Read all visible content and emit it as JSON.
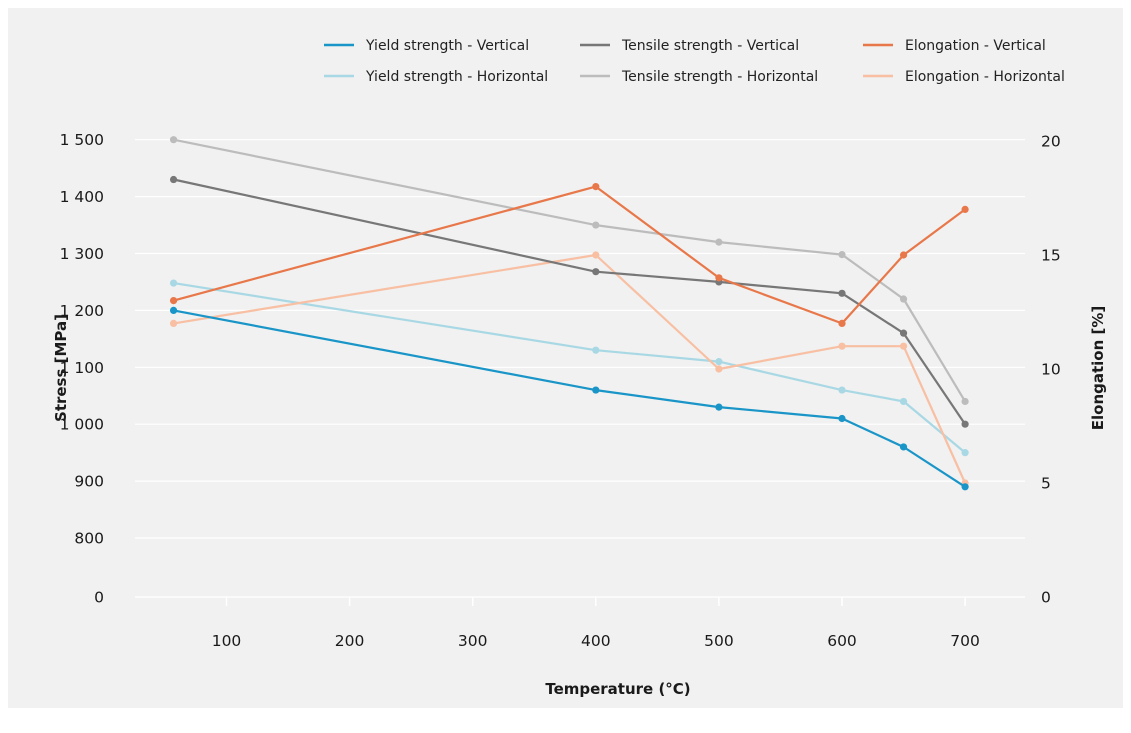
{
  "chart_data": {
    "type": "line",
    "xlabel": "Temperature (°C)",
    "ylabel": "Stress [MPa]",
    "y2label": "Elongation [%]",
    "x_ticks": [
      100,
      200,
      300,
      400,
      500,
      600,
      700
    ],
    "y_ticks": [
      "0",
      "800",
      "900",
      "1 000",
      "1 100",
      "1 200",
      "1 300",
      "1 400",
      "1 500"
    ],
    "y_tick_values": [
      0,
      800,
      900,
      1000,
      1100,
      1200,
      1300,
      1400,
      1500
    ],
    "y2_ticks": [
      "0",
      "5",
      "10",
      "15",
      "20"
    ],
    "y2_tick_values": [
      0,
      5,
      10,
      15,
      20
    ],
    "ylim": [
      0,
      1500
    ],
    "y_scale": "broken (0, then 800–1500)",
    "y2lim": [
      0,
      20
    ],
    "xlim": [
      20,
      750
    ],
    "grid": "horizontal",
    "legend_position": "top",
    "series": [
      {
        "name": "Yield strength - Vertical",
        "axis": "left",
        "color": "#1a95c8",
        "x": [
          57,
          400,
          500,
          600,
          650,
          700
        ],
        "values": [
          1200,
          1060,
          1030,
          1010,
          960,
          890
        ]
      },
      {
        "name": "Yield strength - Horizontal",
        "axis": "left",
        "color": "#a9d8e5",
        "x": [
          57,
          400,
          500,
          600,
          650,
          700
        ],
        "values": [
          1248,
          1130,
          1110,
          1060,
          1040,
          950
        ]
      },
      {
        "name": "Tensile strength - Vertical",
        "axis": "left",
        "color": "#777777",
        "x": [
          57,
          400,
          500,
          600,
          650,
          700
        ],
        "values": [
          1430,
          1268,
          1250,
          1230,
          1160,
          1000
        ]
      },
      {
        "name": "Tensile strength - Horizontal",
        "axis": "left",
        "color": "#bcbcbc",
        "x": [
          57,
          400,
          500,
          600,
          650,
          700
        ],
        "values": [
          1500,
          1350,
          1320,
          1298,
          1220,
          1040
        ]
      },
      {
        "name": "Elongation - Vertical",
        "axis": "right",
        "color": "#e8774a",
        "x": [
          57,
          400,
          500,
          600,
          650,
          700
        ],
        "values": [
          13,
          18,
          14,
          12,
          15,
          17
        ]
      },
      {
        "name": "Elongation - Horizontal",
        "axis": "right",
        "color": "#f8bfa3",
        "x": [
          57,
          400,
          500,
          600,
          650,
          700
        ],
        "values": [
          12,
          15,
          10,
          11,
          11,
          5
        ]
      }
    ]
  }
}
